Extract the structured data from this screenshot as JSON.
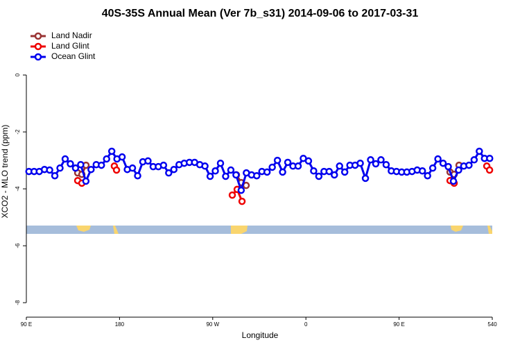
{
  "chart_data": {
    "type": "line",
    "title": "40S-35S Annual Mean (Ver 7b_s31)   2014-09-06 to 2017-03-31",
    "x_label": "Longitude",
    "y_label": "XCO2 - MLO trend (ppm)",
    "xlim": [
      90,
      540
    ],
    "xticks": [
      {
        "value": 90,
        "label": "90 E"
      },
      180,
      {
        "value": 270,
        "label": "90 W"
      },
      {
        "value": 360,
        "label": "0"
      },
      {
        "value": 450,
        "label": "90 E"
      },
      540
    ],
    "ylim": [
      -8.46,
      1.66
    ],
    "yticks": [
      0,
      -2,
      -4,
      -6,
      -8
    ],
    "legend": "top-left",
    "series": [
      {
        "name": "Land Nadir",
        "color": "#993333",
        "x": [
          139.6,
          143.6,
          147.6,
          null,
          292.9,
          297.6,
          302.3,
          null,
          499.2,
          503.2,
          507.9
        ],
        "values": [
          -3.44,
          -3.49,
          -3.17,
          null,
          -3.51,
          -3.78,
          -3.88,
          null,
          -3.41,
          -3.49,
          -3.17
        ]
      },
      {
        "name": "Land Glint",
        "color": "#ee0000",
        "x": [
          139.6,
          143.6,
          null,
          175.0,
          177.1,
          null,
          288.9,
          293.6,
          298.3,
          null,
          499.2,
          503.2,
          null,
          534.7,
          537.4
        ],
        "values": [
          -3.71,
          -3.8,
          null,
          -3.2,
          -3.34,
          null,
          -4.22,
          -4.02,
          -4.44,
          null,
          -3.71,
          -3.8,
          null,
          -3.2,
          -3.34
        ]
      },
      {
        "name": "Ocean Glint",
        "color": "#0000ee",
        "x": [
          92.5,
          97.5,
          102.5,
          107.5,
          112.5,
          117.5,
          122.5,
          127.5,
          132.5,
          137.5,
          142.5,
          147.5,
          152.5,
          157.5,
          162.5,
          167.5,
          172.5,
          177.5,
          182.5,
          187.5,
          192.5,
          197.5,
          202.5,
          207.5,
          212.5,
          217.5,
          222.5,
          227.5,
          232.5,
          237.5,
          242.5,
          247.5,
          252.5,
          257.5,
          262.5,
          267.5,
          272.5,
          277.5,
          282.5,
          287.5,
          292.5,
          297.5,
          302.5,
          307.5,
          312.5,
          317.5,
          322.5,
          327.5,
          332.5,
          337.5,
          342.5,
          347.5,
          352.5,
          357.5,
          362.5,
          367.5,
          372.5,
          377.5,
          382.5,
          387.5,
          392.5,
          397.5,
          402.5,
          407.5,
          412.5,
          417.5,
          422.5,
          427.5,
          432.5,
          437.5,
          442.5,
          447.5,
          452.5,
          457.5,
          462.5,
          467.5,
          472.5,
          477.5,
          482.5,
          487.5,
          492.5,
          497.5,
          502.5,
          507.5,
          512.5,
          517.5,
          522.5,
          527.5,
          532.5,
          537.5
        ],
        "values": [
          -3.39,
          -3.39,
          -3.39,
          -3.32,
          -3.34,
          -3.54,
          -3.27,
          -2.95,
          -3.12,
          -3.27,
          -3.15,
          -3.73,
          -3.32,
          -3.15,
          -3.17,
          -2.95,
          -2.68,
          -2.95,
          -2.88,
          -3.32,
          -3.27,
          -3.54,
          -3.05,
          -3.02,
          -3.22,
          -3.22,
          -3.17,
          -3.44,
          -3.32,
          -3.15,
          -3.1,
          -3.07,
          -3.07,
          -3.15,
          -3.2,
          -3.56,
          -3.37,
          -3.1,
          -3.56,
          -3.34,
          -3.51,
          -4.05,
          -3.44,
          -3.51,
          -3.54,
          -3.39,
          -3.41,
          -3.24,
          -3.0,
          -3.41,
          -3.07,
          -3.2,
          -3.2,
          -2.93,
          -3.02,
          -3.37,
          -3.56,
          -3.39,
          -3.39,
          -3.51,
          -3.2,
          -3.41,
          -3.17,
          -3.17,
          -3.1,
          -3.63,
          -2.98,
          -3.12,
          -2.98,
          -3.15,
          -3.37,
          -3.39,
          -3.41,
          -3.41,
          -3.39,
          -3.34,
          -3.37,
          -3.54,
          -3.27,
          -2.95,
          -3.1,
          -3.22,
          -3.73,
          -3.34,
          -3.2,
          -3.17,
          -2.98,
          -2.68,
          -2.93,
          -2.93
        ]
      }
    ]
  }
}
